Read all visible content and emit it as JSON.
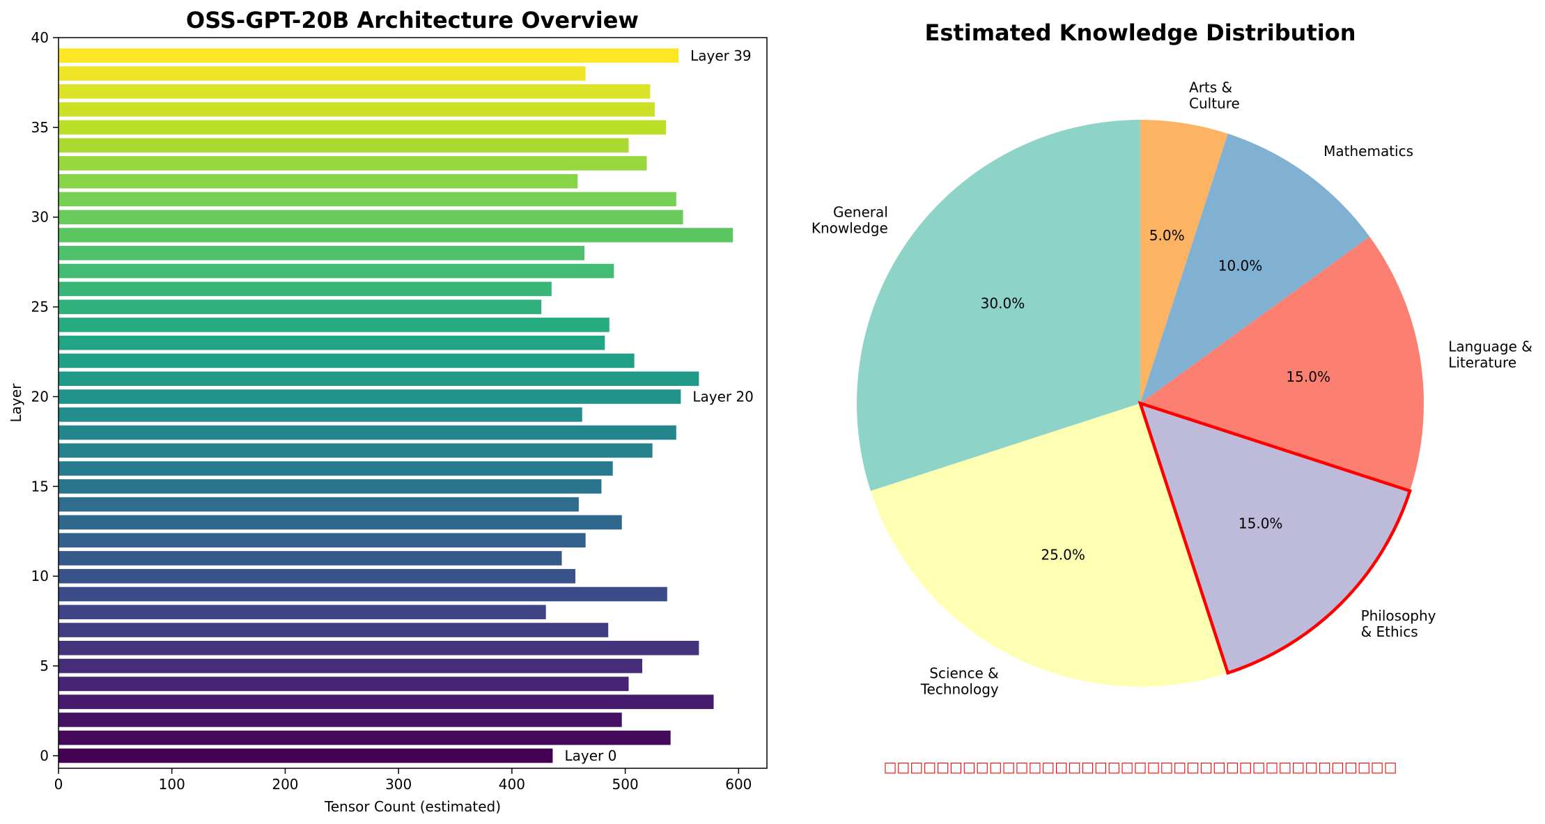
{
  "chart_data": [
    {
      "type": "bar",
      "orientation": "horizontal",
      "title": "OSS-GPT-20B Architecture Overview",
      "xlabel": "Tensor Count (estimated)",
      "ylabel": "Layer",
      "xlim": [
        0,
        625
      ],
      "ylim": [
        -0.7,
        40
      ],
      "xticks": [
        0,
        100,
        200,
        300,
        400,
        500,
        600
      ],
      "yticks": [
        0,
        5,
        10,
        15,
        20,
        25,
        30,
        35,
        40
      ],
      "colormap": "viridis",
      "layers": [
        0,
        1,
        2,
        3,
        4,
        5,
        6,
        7,
        8,
        9,
        10,
        11,
        12,
        13,
        14,
        15,
        16,
        17,
        18,
        19,
        20,
        21,
        22,
        23,
        24,
        25,
        26,
        27,
        28,
        29,
        30,
        31,
        32,
        33,
        34,
        35,
        36,
        37,
        38,
        39
      ],
      "values": [
        436,
        540,
        497,
        578,
        503,
        515,
        565,
        485,
        430,
        537,
        456,
        444,
        465,
        497,
        459,
        479,
        489,
        524,
        545,
        462,
        549,
        565,
        508,
        482,
        486,
        426,
        435,
        490,
        464,
        595,
        551,
        545,
        458,
        519,
        503,
        536,
        526,
        522,
        465,
        547
      ],
      "annotations": [
        {
          "layer": 0,
          "text": "Layer 0"
        },
        {
          "layer": 20,
          "text": "Layer 20"
        },
        {
          "layer": 39,
          "text": "Layer 39"
        }
      ]
    },
    {
      "type": "pie",
      "title": "Estimated Knowledge Distribution",
      "start_angle_deg": 90,
      "direction": "clockwise",
      "slices": [
        {
          "label": "Arts &\nCulture",
          "value": 5.0,
          "pct": "5.0%",
          "color": "#fdb462"
        },
        {
          "label": "Mathematics",
          "value": 10.0,
          "pct": "10.0%",
          "color": "#80b1d3"
        },
        {
          "label": "Language &\nLiterature",
          "value": 15.0,
          "pct": "15.0%",
          "color": "#fb8072"
        },
        {
          "label": "Philosophy\n& Ethics",
          "value": 15.0,
          "pct": "15.0%",
          "color": "#bebada",
          "highlight": true,
          "highlight_color": "#ff0000"
        },
        {
          "label": "Science &\nTechnology",
          "value": 25.0,
          "pct": "25.0%",
          "color": "#ffffb3"
        },
        {
          "label": "General\nKnowledge",
          "value": 30.0,
          "pct": "30.0%",
          "color": "#8dd3c7"
        }
      ],
      "footnote": "□□□□□□□□□□□□□□□□□□□□□□□□□□□□□□□□□□□□□□□"
    }
  ]
}
